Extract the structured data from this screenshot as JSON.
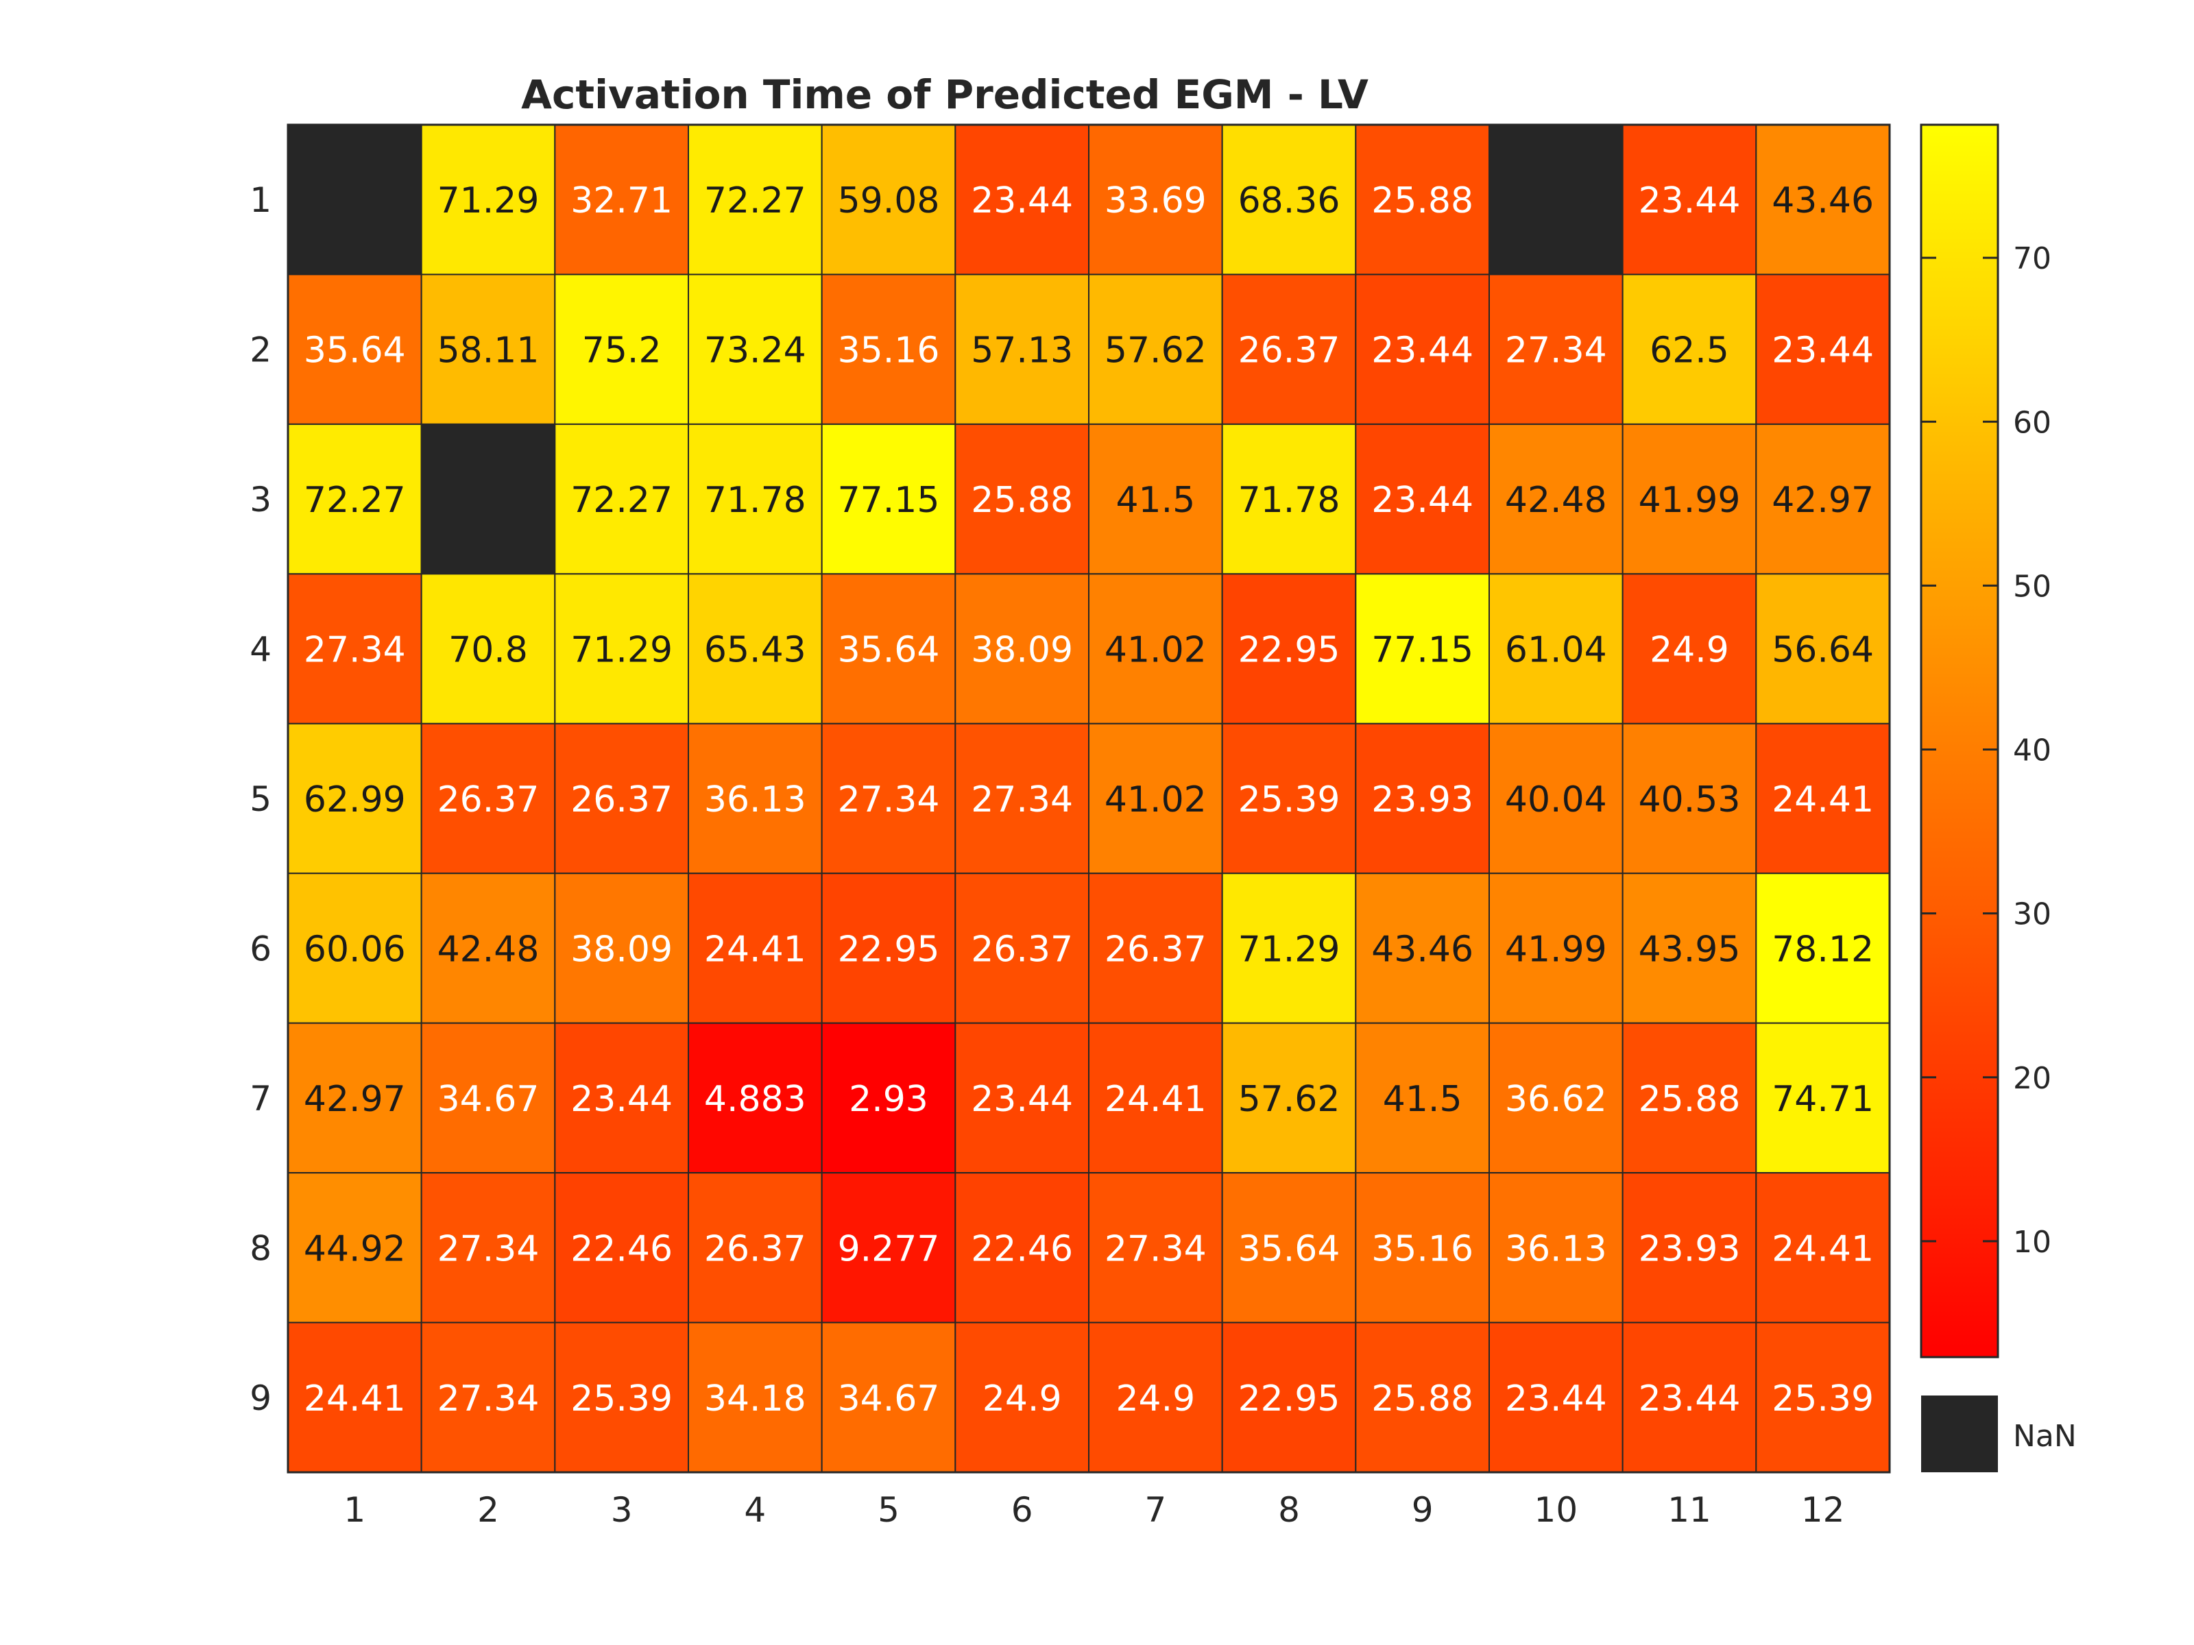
{
  "chart_data": {
    "type": "heatmap",
    "title": "Activation Time of Predicted EGM - LV",
    "xlabel": "",
    "ylabel": "",
    "x_categories": [
      "1",
      "2",
      "3",
      "4",
      "5",
      "6",
      "7",
      "8",
      "9",
      "10",
      "11",
      "12"
    ],
    "y_categories": [
      "1",
      "2",
      "3",
      "4",
      "5",
      "6",
      "7",
      "8",
      "9"
    ],
    "values": [
      [
        null,
        71.29,
        32.71,
        72.27,
        59.08,
        23.44,
        33.69,
        68.36,
        25.88,
        null,
        23.44,
        43.46
      ],
      [
        35.64,
        58.11,
        75.2,
        73.24,
        35.16,
        57.13,
        57.62,
        26.37,
        23.44,
        27.34,
        62.5,
        23.44
      ],
      [
        72.27,
        null,
        72.27,
        71.78,
        77.15,
        25.88,
        41.5,
        71.78,
        23.44,
        42.48,
        41.99,
        42.97
      ],
      [
        27.34,
        70.8,
        71.29,
        65.43,
        35.64,
        38.09,
        41.02,
        22.95,
        77.15,
        61.04,
        24.9,
        56.64
      ],
      [
        62.99,
        26.37,
        26.37,
        36.13,
        27.34,
        27.34,
        41.02,
        25.39,
        23.93,
        40.04,
        40.53,
        24.41
      ],
      [
        60.06,
        42.48,
        38.09,
        24.41,
        22.95,
        26.37,
        26.37,
        71.29,
        43.46,
        41.99,
        43.95,
        78.12
      ],
      [
        42.97,
        34.67,
        23.44,
        4.883,
        2.93,
        23.44,
        24.41,
        57.62,
        41.5,
        36.62,
        25.88,
        74.71
      ],
      [
        44.92,
        27.34,
        22.46,
        26.37,
        9.277,
        22.46,
        27.34,
        35.64,
        35.16,
        36.13,
        23.93,
        24.41
      ],
      [
        24.41,
        27.34,
        25.39,
        34.18,
        34.67,
        24.9,
        24.9,
        22.95,
        25.88,
        23.44,
        23.44,
        25.39
      ]
    ],
    "value_labels": [
      [
        "",
        "71.29",
        "32.71",
        "72.27",
        "59.08",
        "23.44",
        "33.69",
        "68.36",
        "25.88",
        "",
        "23.44",
        "43.46"
      ],
      [
        "35.64",
        "58.11",
        "75.2",
        "73.24",
        "35.16",
        "57.13",
        "57.62",
        "26.37",
        "23.44",
        "27.34",
        "62.5",
        "23.44"
      ],
      [
        "72.27",
        "",
        "72.27",
        "71.78",
        "77.15",
        "25.88",
        "41.5",
        "71.78",
        "23.44",
        "42.48",
        "41.99",
        "42.97"
      ],
      [
        "27.34",
        "70.8",
        "71.29",
        "65.43",
        "35.64",
        "38.09",
        "41.02",
        "22.95",
        "77.15",
        "61.04",
        "24.9",
        "56.64"
      ],
      [
        "62.99",
        "26.37",
        "26.37",
        "36.13",
        "27.34",
        "27.34",
        "41.02",
        "25.39",
        "23.93",
        "40.04",
        "40.53",
        "24.41"
      ],
      [
        "60.06",
        "42.48",
        "38.09",
        "24.41",
        "22.95",
        "26.37",
        "26.37",
        "71.29",
        "43.46",
        "41.99",
        "43.95",
        "78.12"
      ],
      [
        "42.97",
        "34.67",
        "23.44",
        "4.883",
        "2.93",
        "23.44",
        "24.41",
        "57.62",
        "41.5",
        "36.62",
        "25.88",
        "74.71"
      ],
      [
        "44.92",
        "27.34",
        "22.46",
        "26.37",
        "9.277",
        "22.46",
        "27.34",
        "35.64",
        "35.16",
        "36.13",
        "23.93",
        "24.41"
      ],
      [
        "24.41",
        "27.34",
        "25.39",
        "34.18",
        "34.67",
        "24.9",
        "24.9",
        "22.95",
        "25.88",
        "23.44",
        "23.44",
        "25.39"
      ]
    ],
    "colorbar": {
      "colormap": "autumn",
      "range": [
        2.93,
        78.12
      ],
      "ticks": [
        10,
        20,
        30,
        40,
        50,
        60,
        70
      ],
      "tick_labels": [
        "10",
        "20",
        "30",
        "40",
        "50",
        "60",
        "70"
      ],
      "color_low": "#ff0000",
      "color_high": "#ffff00"
    },
    "missing": {
      "label": "NaN",
      "color": "#262626"
    },
    "grid": true,
    "legend_position": "right"
  }
}
